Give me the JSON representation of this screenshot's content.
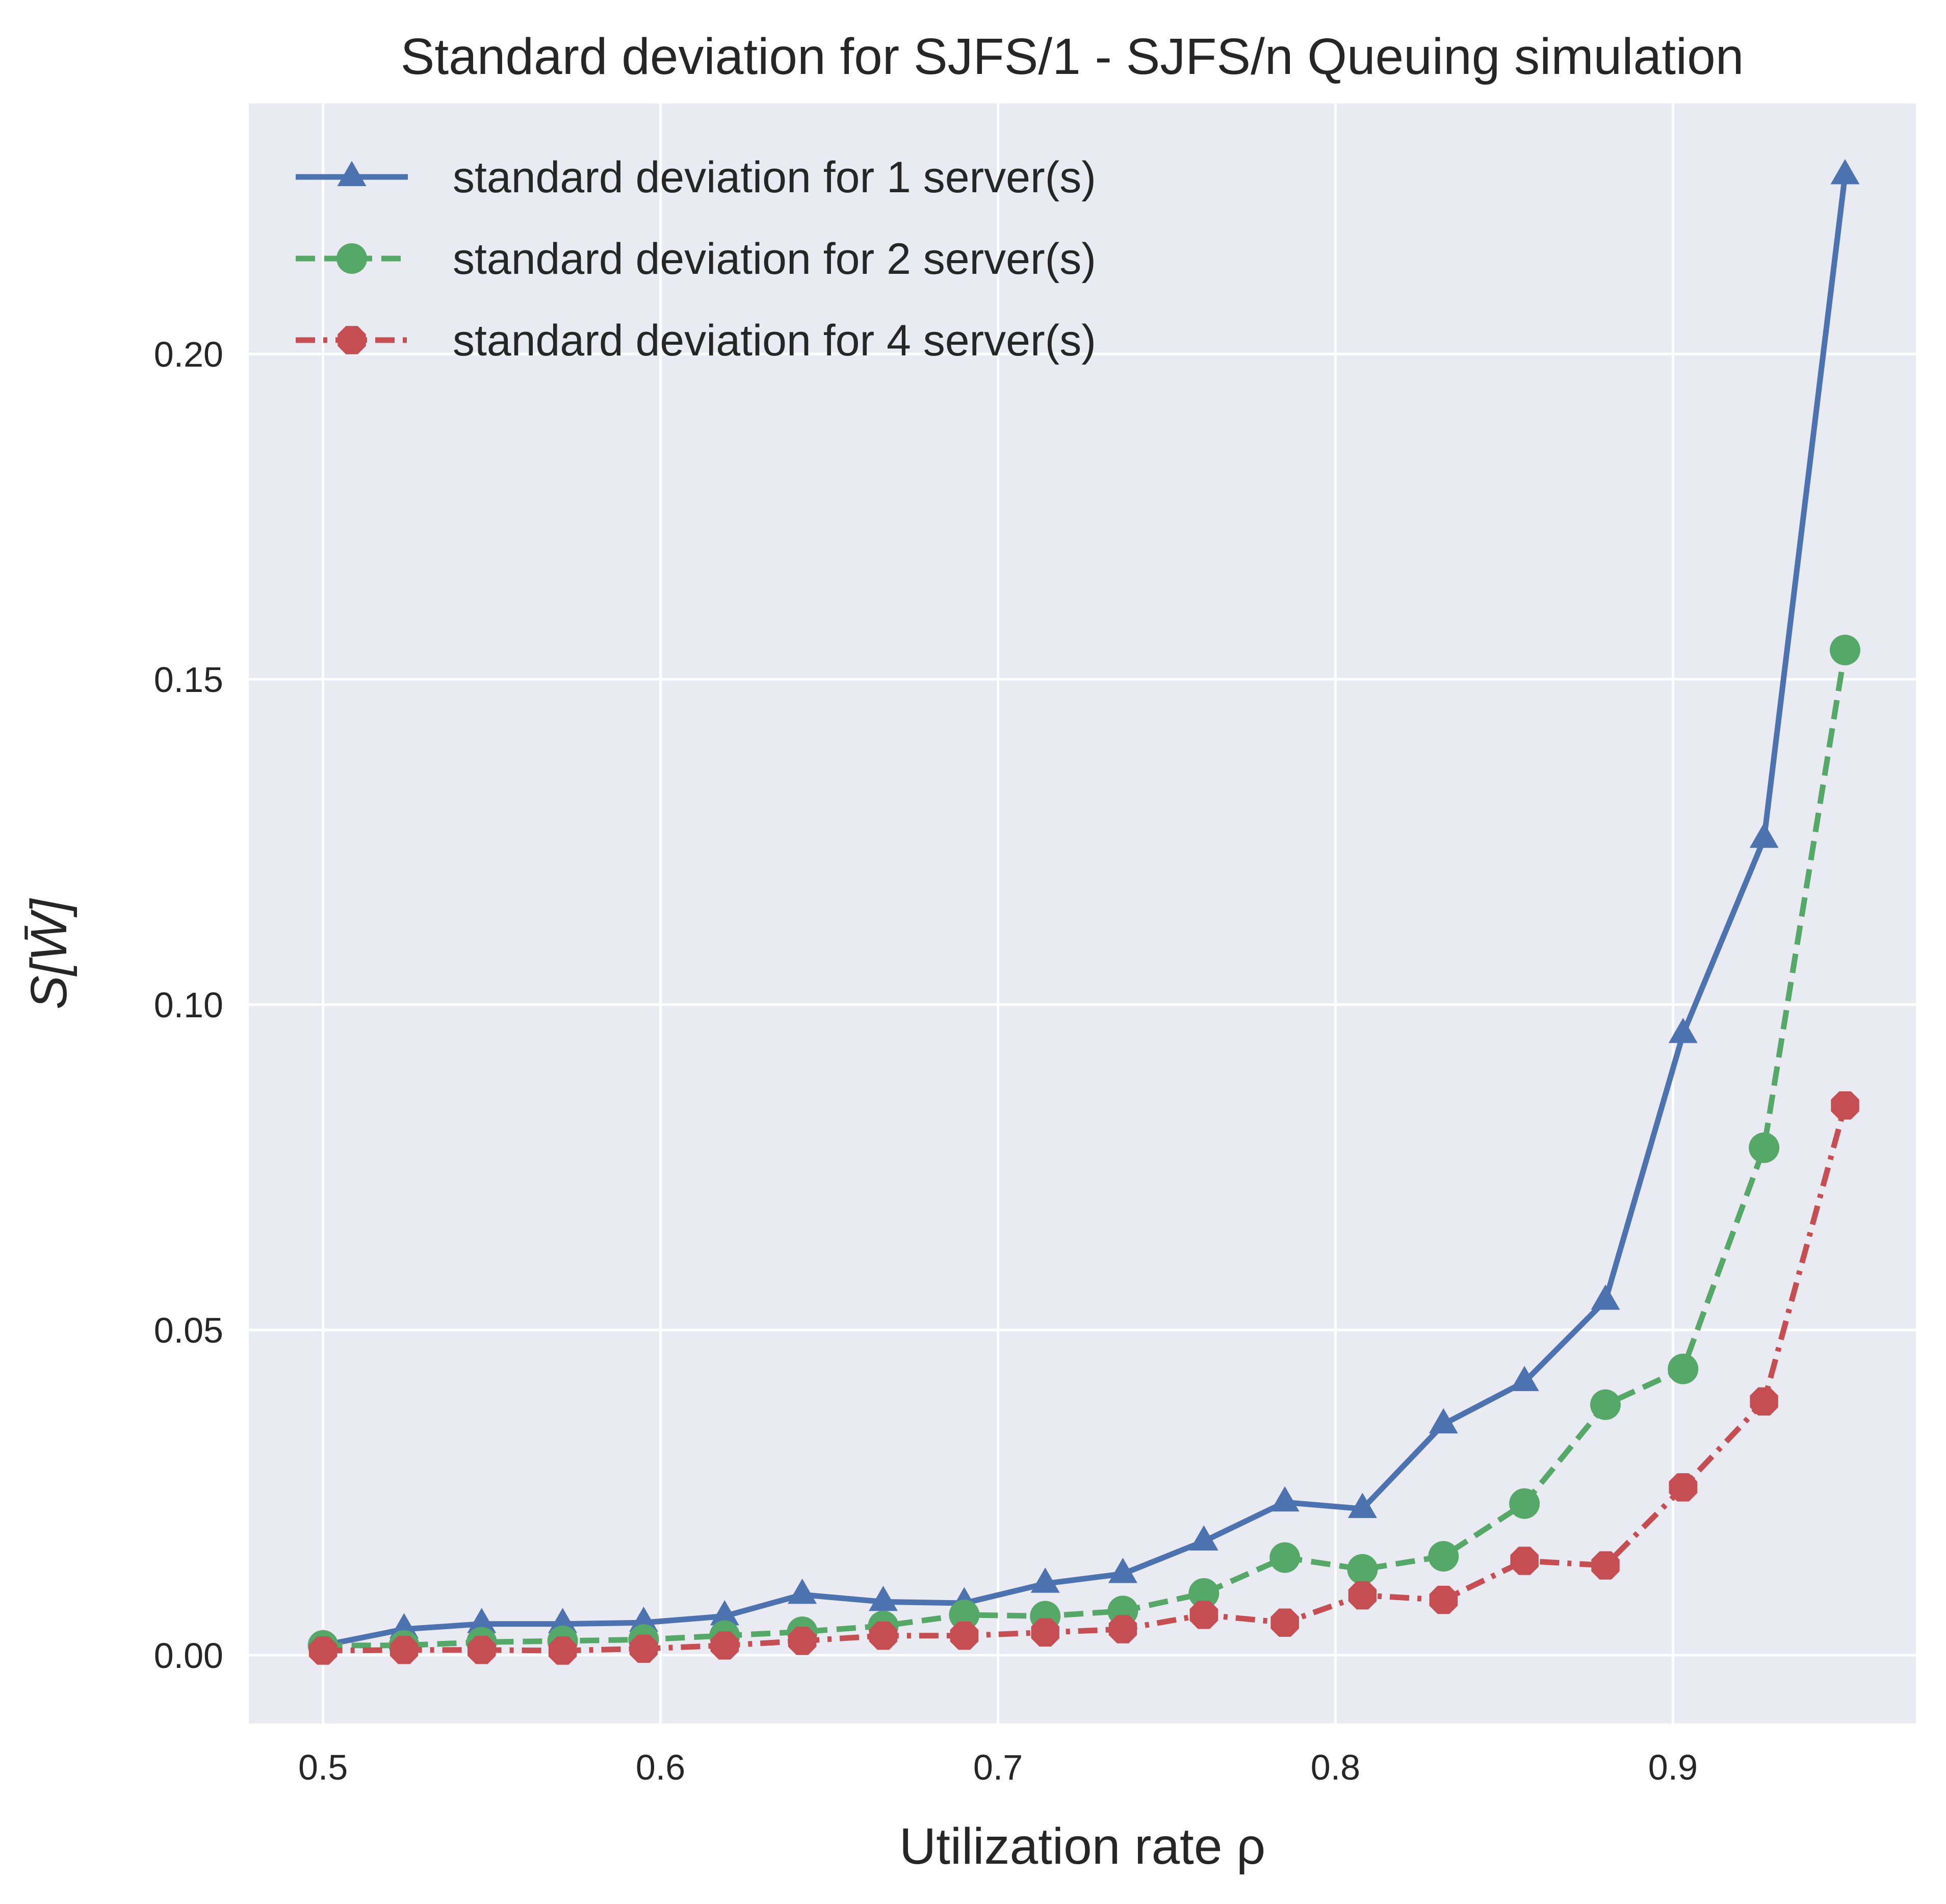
{
  "chart_data": {
    "type": "line",
    "title": "Standard deviation for SJFS/1 - SJFS/n Queuing simulation",
    "xlabel": "Utilization rate ρ",
    "ylabel": "S[W̄]",
    "xlim": [
      0.478,
      0.972
    ],
    "ylim": [
      -0.0105,
      0.2385
    ],
    "xticks": [
      0.5,
      0.6,
      0.7,
      0.8,
      0.9
    ],
    "xtick_labels": [
      "0.5",
      "0.6",
      "0.7",
      "0.8",
      "0.9"
    ],
    "yticks": [
      0.0,
      0.05,
      0.1,
      0.15,
      0.2
    ],
    "ytick_labels": [
      "0.00",
      "0.05",
      "0.10",
      "0.15",
      "0.20"
    ],
    "grid": true,
    "legend_position": "top-left",
    "background": "#eaeaf2",
    "x": [
      0.5,
      0.524,
      0.547,
      0.571,
      0.595,
      0.619,
      0.642,
      0.666,
      0.69,
      0.714,
      0.737,
      0.761,
      0.785,
      0.808,
      0.832,
      0.856,
      0.88,
      0.903,
      0.927,
      0.951
    ],
    "series": [
      {
        "name": "standard deviation for 1 server(s)",
        "color": "#4c72b0",
        "line_style": "solid",
        "marker": "triangle",
        "values": [
          0.0015,
          0.004,
          0.0048,
          0.0048,
          0.005,
          0.006,
          0.0093,
          0.0082,
          0.008,
          0.011,
          0.0125,
          0.0175,
          0.0235,
          0.0225,
          0.0355,
          0.042,
          0.0545,
          0.0955,
          0.1255,
          0.2275
        ]
      },
      {
        "name": "standard deviation for 2 server(s)",
        "color": "#55a868",
        "line_style": "dashed",
        "marker": "circle",
        "values": [
          0.0015,
          0.0015,
          0.002,
          0.0022,
          0.0024,
          0.003,
          0.0036,
          0.0045,
          0.0062,
          0.006,
          0.0068,
          0.0095,
          0.015,
          0.0132,
          0.0152,
          0.0233,
          0.0385,
          0.044,
          0.078,
          0.1545
        ]
      },
      {
        "name": "standard deviation for 4 server(s)",
        "color": "#c44e52",
        "line_style": "dashdot",
        "marker": "octagon",
        "values": [
          0.0007,
          0.0008,
          0.0008,
          0.0007,
          0.001,
          0.0015,
          0.0022,
          0.003,
          0.003,
          0.0035,
          0.004,
          0.0062,
          0.005,
          0.0092,
          0.0085,
          0.0145,
          0.0138,
          0.0258,
          0.039,
          0.0845
        ]
      }
    ]
  }
}
